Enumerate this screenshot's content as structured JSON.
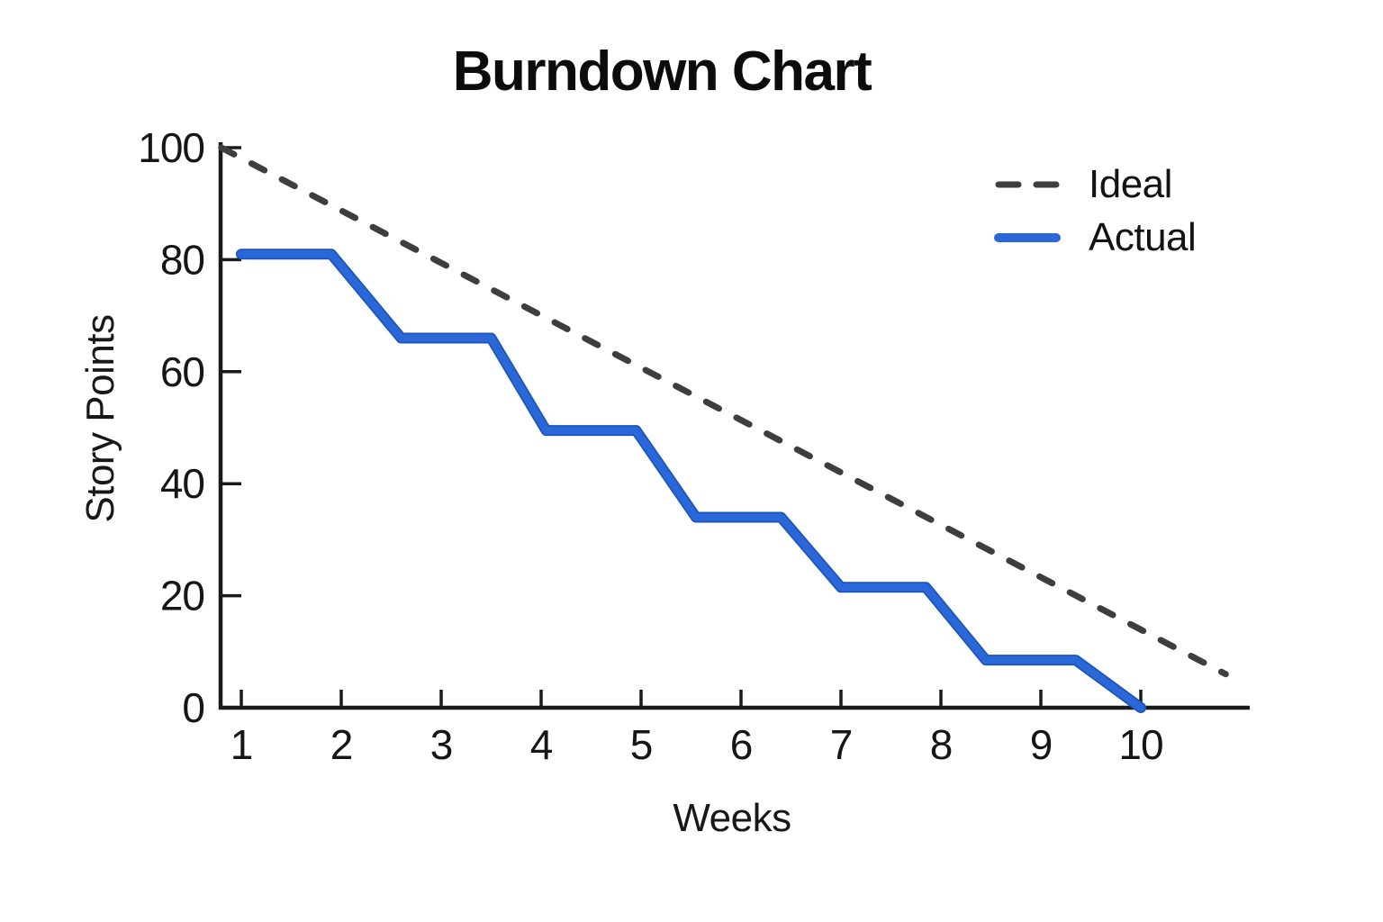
{
  "title": "Burndown Chart",
  "colors": {
    "axis": "#1a1a1a",
    "tick_text": "#161616",
    "ideal_gray": "#3e3e3e",
    "actual_blue": "#2a68da",
    "actual_blue_edge": "#1e55b4",
    "background": "#ffffff"
  },
  "legend": {
    "items": [
      {
        "name": "ideal",
        "label": "Ideal",
        "style": "dashed",
        "color": "#3e3e3e"
      },
      {
        "name": "actual",
        "label": "Actual",
        "style": "solid",
        "color": "#2a68da"
      }
    ]
  },
  "chart_data": {
    "type": "line",
    "title": "Burndown Chart",
    "xlabel": "Weeks",
    "ylabel": "Story Points",
    "xlim": [
      0.79,
      11.1
    ],
    "ylim": [
      0,
      100
    ],
    "x_ticks": [
      1,
      2,
      3,
      4,
      5,
      6,
      7,
      8,
      9,
      10
    ],
    "y_ticks": [
      0,
      20,
      40,
      60,
      80,
      100
    ],
    "grid": false,
    "legend_position": "upper right",
    "tick_direction": "in",
    "series": [
      {
        "name": "Ideal",
        "style": "dashed",
        "color": "#3e3e3e",
        "points": [
          [
            0.8,
            100
          ],
          [
            10.85,
            6
          ]
        ]
      },
      {
        "name": "Actual",
        "style": "solid",
        "color": "#2a68da",
        "points": [
          [
            1,
            81
          ],
          [
            1.9,
            81
          ],
          [
            2.6,
            66
          ],
          [
            3.5,
            66
          ],
          [
            4.05,
            49.5
          ],
          [
            4.95,
            49.5
          ],
          [
            5.55,
            34
          ],
          [
            6.4,
            34
          ],
          [
            7,
            21.5
          ],
          [
            7.85,
            21.5
          ],
          [
            8.45,
            8.5
          ],
          [
            9.35,
            8.5
          ],
          [
            10,
            0
          ]
        ]
      }
    ]
  }
}
